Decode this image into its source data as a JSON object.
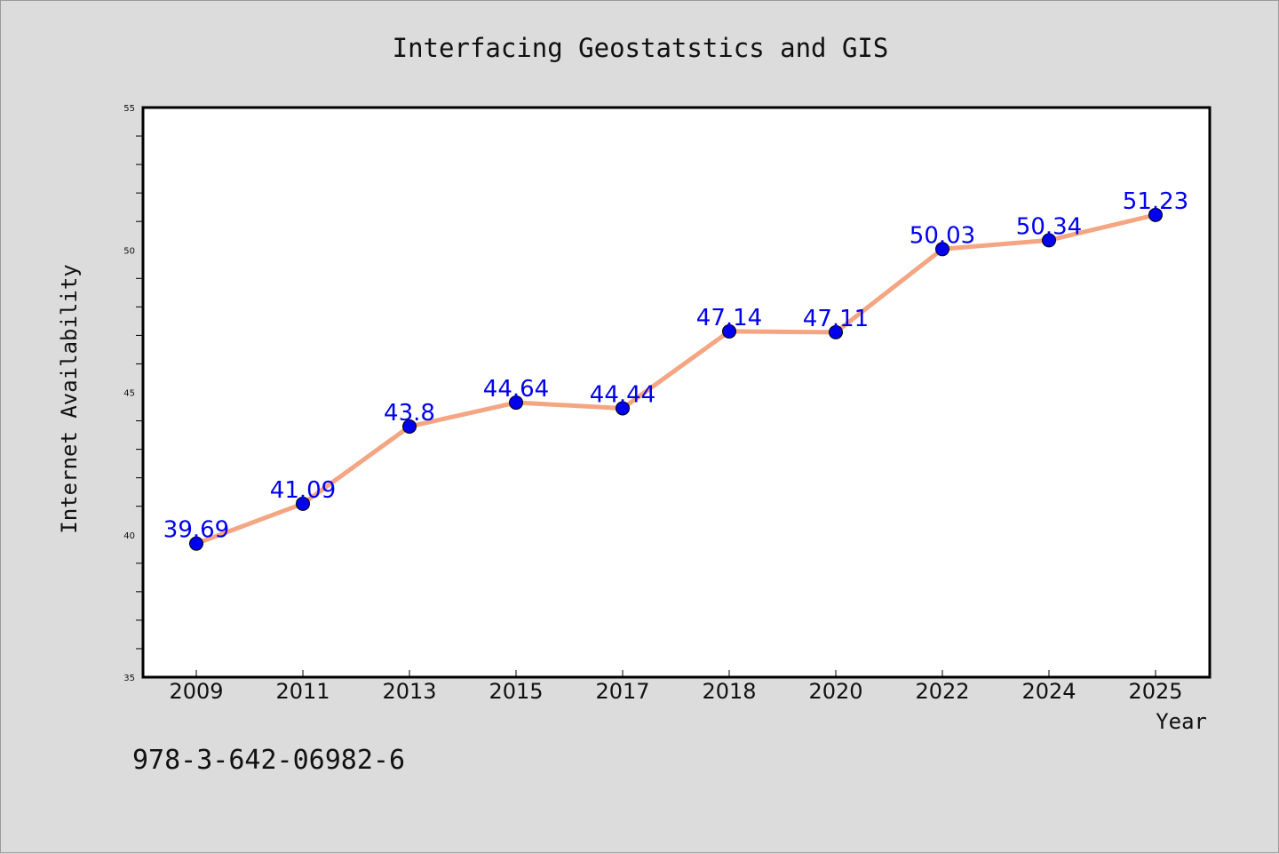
{
  "chart_data": {
    "type": "line",
    "title": "Interfacing Geostatstics and GIS",
    "xlabel": "Year",
    "ylabel": "Internet Availability",
    "categories": [
      "2009",
      "2011",
      "2013",
      "2015",
      "2017",
      "2018",
      "2020",
      "2022",
      "2024",
      "2025"
    ],
    "series": [
      {
        "values": [
          39.69,
          41.09,
          43.8,
          44.64,
          44.44,
          47.14,
          47.11,
          50.03,
          50.34,
          51.23
        ],
        "labels": [
          "39.69",
          "41.09",
          "43.8",
          "44.64",
          "44.44",
          "47.14",
          "47.11",
          "50.03",
          "50.34",
          "51.23"
        ]
      }
    ],
    "ylim": [
      35,
      55
    ],
    "yticks": [
      "35",
      "40",
      "45",
      "50",
      "55"
    ],
    "grid": false,
    "legend": "none"
  },
  "footer": {
    "isbn": "978-3-642-06982-6"
  },
  "colors": {
    "background": "#dcdcdc",
    "plot_background": "#ffffff",
    "line": "#f4a582",
    "marker": "#0000ee",
    "data_label": "#0000ee"
  }
}
